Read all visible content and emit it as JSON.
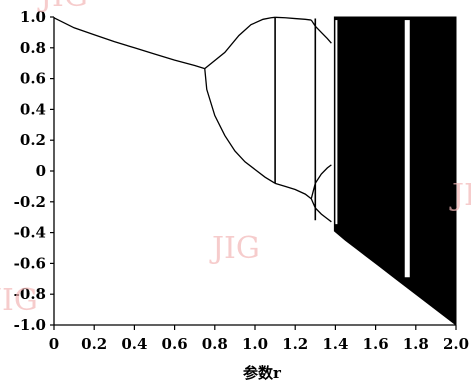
{
  "chart_data": {
    "type": "scatter",
    "title": "",
    "xlabel": "参数r",
    "ylabel": "",
    "xlim": [
      0,
      2.0
    ],
    "ylim": [
      -1.0,
      1.0
    ],
    "x_ticks": [
      "0",
      "0.2",
      "0.4",
      "0.6",
      "0.8",
      "1.0",
      "1.2",
      "1.4",
      "1.6",
      "1.8",
      "2.0"
    ],
    "y_ticks": [
      "1.0",
      "0.8",
      "0.6",
      "0.4",
      "0.2",
      "0",
      "-0.2",
      "-0.4",
      "-0.6",
      "-0.8",
      "-1.0"
    ],
    "grid": false,
    "legend": "none",
    "series": [
      {
        "kind": "line",
        "x": [
          0,
          0.1,
          0.2,
          0.3,
          0.4,
          0.5,
          0.6,
          0.7,
          0.75
        ],
        "y": [
          0.995,
          0.93,
          0.885,
          0.84,
          0.8,
          0.76,
          0.72,
          0.685,
          0.665
        ]
      },
      {
        "kind": "line",
        "x": [
          0.75,
          0.85,
          0.92,
          0.98,
          1.04,
          1.08,
          1.1
        ],
        "y": [
          0.665,
          0.77,
          0.88,
          0.95,
          0.985,
          0.995,
          0.998
        ]
      },
      {
        "kind": "line",
        "x": [
          0.75,
          0.76,
          0.8,
          0.85,
          0.9,
          0.95,
          1.0,
          1.05,
          1.1
        ],
        "y": [
          0.665,
          0.53,
          0.36,
          0.23,
          0.13,
          0.06,
          0.01,
          -0.04,
          -0.08
        ]
      },
      {
        "kind": "line",
        "x": [
          1.1,
          1.15,
          1.2,
          1.25,
          1.28
        ],
        "y": [
          -0.08,
          -0.1,
          -0.12,
          -0.15,
          -0.18
        ]
      },
      {
        "kind": "line",
        "x": [
          1.1,
          1.15,
          1.2,
          1.25,
          1.28
        ],
        "y": [
          0.998,
          0.995,
          0.99,
          0.985,
          0.98
        ]
      },
      {
        "kind": "line",
        "x": [
          1.28,
          1.3,
          1.33,
          1.36,
          1.38
        ],
        "y": [
          -0.18,
          -0.08,
          -0.02,
          0.02,
          0.04
        ]
      },
      {
        "kind": "line",
        "x": [
          1.28,
          1.3,
          1.33,
          1.36,
          1.38
        ],
        "y": [
          -0.18,
          -0.24,
          -0.28,
          -0.31,
          -0.33
        ]
      },
      {
        "kind": "line",
        "x": [
          1.28,
          1.3,
          1.33,
          1.36,
          1.38
        ],
        "y": [
          0.98,
          0.94,
          0.9,
          0.86,
          0.83
        ]
      },
      {
        "kind": "vline",
        "x": [
          1.1,
          1.1
        ],
        "y": [
          -0.08,
          0.998
        ]
      },
      {
        "kind": "vline",
        "x": [
          1.3,
          1.3
        ],
        "y": [
          -0.32,
          0.99
        ]
      },
      {
        "kind": "band",
        "x": [
          1.395,
          1.45,
          1.5,
          1.55,
          1.6,
          1.7,
          1.8,
          1.9,
          2.0
        ],
        "upper": [
          1.0,
          1.0,
          1.0,
          1.0,
          1.0,
          1.0,
          1.0,
          1.0,
          1.0
        ],
        "lower": [
          -0.39,
          -0.45,
          -0.5,
          -0.55,
          -0.6,
          -0.7,
          -0.8,
          -0.9,
          -1.0
        ]
      }
    ]
  },
  "watermarks": [
    "JIG",
    "JIG",
    "JIG",
    "JIG"
  ]
}
